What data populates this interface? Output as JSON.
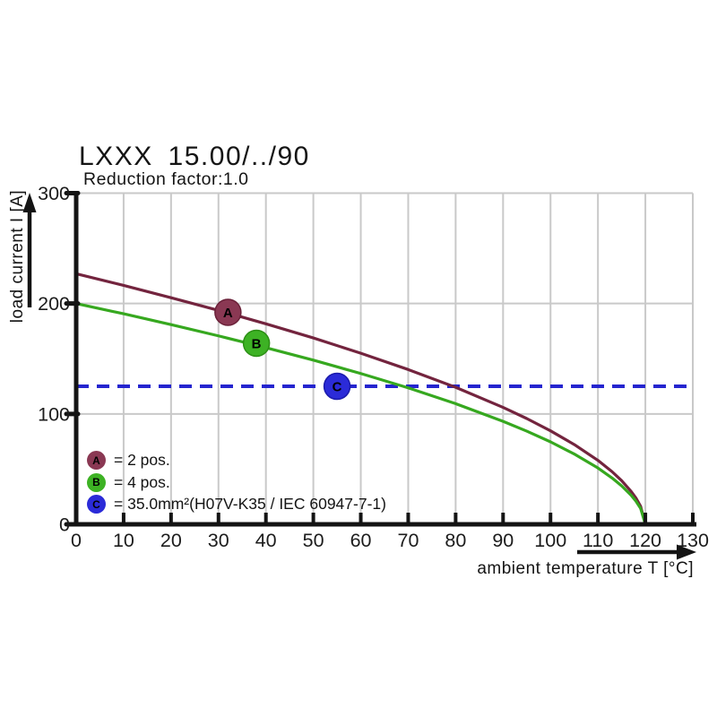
{
  "header": {
    "title": "LXXX 15.00/../90",
    "subtitle": "Reduction factor:1.0"
  },
  "chart_data": {
    "type": "line",
    "title": "LXXX 15.00/../90",
    "subtitle": "Reduction factor:1.0",
    "xlabel": "ambient temperature T [°C]",
    "ylabel": "load current I [A]",
    "xlim": [
      0,
      130
    ],
    "ylim": [
      0,
      300
    ],
    "x_ticks": [
      0,
      10,
      20,
      30,
      40,
      50,
      60,
      70,
      80,
      90,
      100,
      110,
      120,
      130
    ],
    "y_ticks": [
      0,
      100,
      200,
      300
    ],
    "grid": true,
    "legend_position": "inside bottom-left",
    "x": [
      0,
      10,
      20,
      30,
      40,
      50,
      60,
      70,
      80,
      90,
      95,
      100,
      105,
      110,
      113,
      115,
      117,
      118,
      119,
      120
    ],
    "series": [
      {
        "name": "A",
        "legend": "= 2 pos.",
        "line_color": "#73243e",
        "marker_color": "#8a3853",
        "values": [
          227,
          216.4,
          205.3,
          193.8,
          181.6,
          168.8,
          155,
          140.2,
          124.1,
          105.9,
          95.8,
          84.7,
          72.3,
          57.9,
          47.6,
          39.5,
          29.8,
          23.9,
          16.3,
          0
        ]
      },
      {
        "name": "B",
        "legend": "= 4 pos.",
        "line_color": "#36a81f",
        "marker_color": "#3db224",
        "values": [
          200,
          190.7,
          180.9,
          170.7,
          160,
          148.7,
          136.6,
          123.6,
          109.3,
          93.3,
          84.4,
          74.7,
          63.7,
          51,
          41.9,
          34.8,
          26.3,
          21,
          14.4,
          0
        ]
      }
    ],
    "reference_line": {
      "name": "C",
      "legend": "= 35.0mm²(H07V-K35 / IEC 60947-7-1)",
      "value": 125,
      "style": "dashed",
      "color": "#2525cf"
    },
    "markers": [
      {
        "letter": "A",
        "t": 32,
        "i": 192,
        "fill": "#8a3853",
        "stroke": "#6a2038"
      },
      {
        "letter": "B",
        "t": 38,
        "i": 164,
        "fill": "#3db224",
        "stroke": "#2c8f15"
      },
      {
        "letter": "C",
        "t": 55,
        "i": 125,
        "fill": "#2b2bd8",
        "stroke": "#1b1bab"
      }
    ],
    "legend": [
      {
        "letter": "A",
        "color": "#8a3853",
        "text": "= 2 pos."
      },
      {
        "letter": "B",
        "color": "#3db224",
        "text": "= 4 pos."
      },
      {
        "letter": "C",
        "color": "#2b2bd8",
        "text": "= 35.0mm²(H07V-K35 / IEC 60947-7-1)"
      }
    ],
    "colors": {
      "grid": "#c9c9c9",
      "axis": "#141414",
      "text": "#1c1c1c",
      "background": "#ffffff"
    }
  }
}
